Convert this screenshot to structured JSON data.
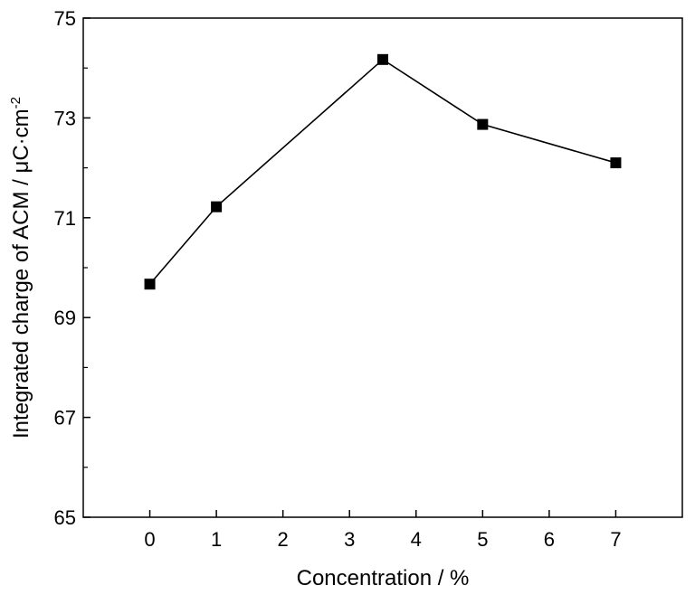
{
  "chart_data": {
    "type": "line",
    "xlabel": "Concentration / %",
    "ylabel_main": "Integrated charge of ACM / μC·cm",
    "ylabel_sup": "-2",
    "xlim": [
      -1,
      8
    ],
    "ylim": [
      65,
      75
    ],
    "xticks": [
      "0",
      "1",
      "2",
      "3",
      "4",
      "5",
      "6",
      "7"
    ],
    "yticks": [
      "65",
      "67",
      "69",
      "71",
      "73",
      "75"
    ],
    "marker": "square",
    "grid": false,
    "series": [
      {
        "x": [
          0,
          1,
          3.5,
          5,
          7
        ],
        "y": [
          69.67,
          71.22,
          74.17,
          72.87,
          72.1
        ]
      }
    ]
  }
}
